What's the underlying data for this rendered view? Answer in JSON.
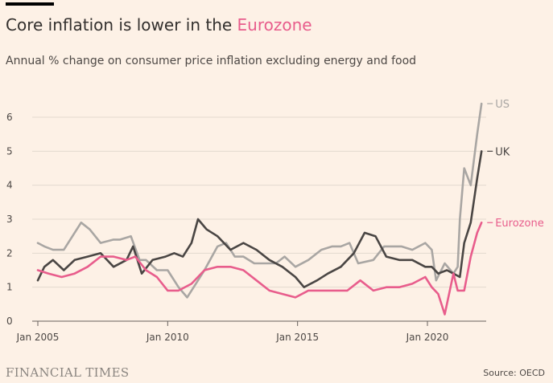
{
  "header": {
    "title_prefix": "Core inflation is lower in the ",
    "title_highlight": "Eurozone",
    "subtitle": "Annual % change on consumer price inflation excluding energy and food"
  },
  "footer": {
    "brand": "FINANCIAL TIMES",
    "source": "Source: OECD"
  },
  "colors": {
    "background": "#fdf1e6",
    "US": "#a9a6a3",
    "UK": "#4a4644",
    "Eurozone": "#e85d8c",
    "grid": "#e3d9cf",
    "axis": "#66605c"
  },
  "chart_data": {
    "type": "line",
    "title": "Core inflation is lower in the Eurozone",
    "subtitle": "Annual % change on consumer price inflation excluding energy and food",
    "xlabel": "",
    "ylabel": "",
    "xlim": [
      "2005-01",
      "2021-12"
    ],
    "ylim": [
      0,
      6.5
    ],
    "yticks": [
      0,
      1,
      2,
      3,
      4,
      5,
      6
    ],
    "xticks": [
      "Jan 2005",
      "Jan 2010",
      "Jan 2015",
      "Jan 2020"
    ],
    "grid": true,
    "legend": "direct labels at line ends",
    "series": [
      {
        "name": "US",
        "points": [
          [
            "2005-01",
            2.3
          ],
          [
            "2005-04",
            2.2
          ],
          [
            "2005-08",
            2.1
          ],
          [
            "2006-01",
            2.1
          ],
          [
            "2006-06",
            2.6
          ],
          [
            "2006-09",
            2.9
          ],
          [
            "2007-01",
            2.7
          ],
          [
            "2007-06",
            2.3
          ],
          [
            "2007-12",
            2.4
          ],
          [
            "2008-03",
            2.4
          ],
          [
            "2008-08",
            2.5
          ],
          [
            "2008-12",
            1.8
          ],
          [
            "2009-03",
            1.8
          ],
          [
            "2009-08",
            1.5
          ],
          [
            "2010-01",
            1.5
          ],
          [
            "2010-06",
            1.0
          ],
          [
            "2010-10",
            0.7
          ],
          [
            "2011-01",
            1.0
          ],
          [
            "2011-06",
            1.5
          ],
          [
            "2011-12",
            2.2
          ],
          [
            "2012-04",
            2.3
          ],
          [
            "2012-08",
            1.9
          ],
          [
            "2012-12",
            1.9
          ],
          [
            "2013-05",
            1.7
          ],
          [
            "2013-10",
            1.7
          ],
          [
            "2014-03",
            1.7
          ],
          [
            "2014-07",
            1.9
          ],
          [
            "2014-12",
            1.6
          ],
          [
            "2015-06",
            1.8
          ],
          [
            "2015-12",
            2.1
          ],
          [
            "2016-05",
            2.2
          ],
          [
            "2016-09",
            2.2
          ],
          [
            "2017-01",
            2.3
          ],
          [
            "2017-05",
            1.7
          ],
          [
            "2017-12",
            1.8
          ],
          [
            "2018-05",
            2.2
          ],
          [
            "2018-09",
            2.2
          ],
          [
            "2019-01",
            2.2
          ],
          [
            "2019-06",
            2.1
          ],
          [
            "2019-12",
            2.3
          ],
          [
            "2020-03",
            2.1
          ],
          [
            "2020-05",
            1.2
          ],
          [
            "2020-09",
            1.7
          ],
          [
            "2021-01",
            1.4
          ],
          [
            "2021-03",
            1.6
          ],
          [
            "2021-04",
            3.0
          ],
          [
            "2021-06",
            4.5
          ],
          [
            "2021-09",
            4.0
          ],
          [
            "2021-12",
            5.5
          ],
          [
            "2022-02",
            6.4
          ]
        ]
      },
      {
        "name": "UK",
        "points": [
          [
            "2005-01",
            1.2
          ],
          [
            "2005-04",
            1.6
          ],
          [
            "2005-08",
            1.8
          ],
          [
            "2006-01",
            1.5
          ],
          [
            "2006-06",
            1.8
          ],
          [
            "2006-12",
            1.9
          ],
          [
            "2007-06",
            2.0
          ],
          [
            "2007-12",
            1.6
          ],
          [
            "2008-06",
            1.8
          ],
          [
            "2008-09",
            2.2
          ],
          [
            "2009-01",
            1.4
          ],
          [
            "2009-06",
            1.8
          ],
          [
            "2009-12",
            1.9
          ],
          [
            "2010-04",
            2.0
          ],
          [
            "2010-08",
            1.9
          ],
          [
            "2010-12",
            2.3
          ],
          [
            "2011-03",
            3.0
          ],
          [
            "2011-07",
            2.7
          ],
          [
            "2011-12",
            2.5
          ],
          [
            "2012-06",
            2.1
          ],
          [
            "2012-12",
            2.3
          ],
          [
            "2013-06",
            2.1
          ],
          [
            "2013-12",
            1.8
          ],
          [
            "2014-06",
            1.6
          ],
          [
            "2014-12",
            1.3
          ],
          [
            "2015-04",
            1.0
          ],
          [
            "2015-10",
            1.2
          ],
          [
            "2016-03",
            1.4
          ],
          [
            "2016-09",
            1.6
          ],
          [
            "2017-03",
            2.0
          ],
          [
            "2017-08",
            2.6
          ],
          [
            "2018-01",
            2.5
          ],
          [
            "2018-06",
            1.9
          ],
          [
            "2018-12",
            1.8
          ],
          [
            "2019-06",
            1.8
          ],
          [
            "2019-12",
            1.6
          ],
          [
            "2020-03",
            1.6
          ],
          [
            "2020-06",
            1.4
          ],
          [
            "2020-10",
            1.5
          ],
          [
            "2021-01",
            1.4
          ],
          [
            "2021-04",
            1.3
          ],
          [
            "2021-06",
            2.3
          ],
          [
            "2021-09",
            2.9
          ],
          [
            "2021-12",
            4.2
          ],
          [
            "2022-02",
            5.0
          ]
        ]
      },
      {
        "name": "Eurozone",
        "points": [
          [
            "2005-01",
            1.5
          ],
          [
            "2005-06",
            1.4
          ],
          [
            "2005-12",
            1.3
          ],
          [
            "2006-06",
            1.4
          ],
          [
            "2006-12",
            1.6
          ],
          [
            "2007-06",
            1.9
          ],
          [
            "2007-12",
            1.9
          ],
          [
            "2008-06",
            1.8
          ],
          [
            "2008-10",
            1.9
          ],
          [
            "2009-03",
            1.5
          ],
          [
            "2009-08",
            1.3
          ],
          [
            "2010-01",
            0.9
          ],
          [
            "2010-06",
            0.9
          ],
          [
            "2010-12",
            1.1
          ],
          [
            "2011-06",
            1.5
          ],
          [
            "2011-12",
            1.6
          ],
          [
            "2012-06",
            1.6
          ],
          [
            "2012-12",
            1.5
          ],
          [
            "2013-06",
            1.2
          ],
          [
            "2013-12",
            0.9
          ],
          [
            "2014-06",
            0.8
          ],
          [
            "2014-12",
            0.7
          ],
          [
            "2015-06",
            0.9
          ],
          [
            "2015-12",
            0.9
          ],
          [
            "2016-06",
            0.9
          ],
          [
            "2016-12",
            0.9
          ],
          [
            "2017-06",
            1.2
          ],
          [
            "2017-12",
            0.9
          ],
          [
            "2018-06",
            1.0
          ],
          [
            "2018-12",
            1.0
          ],
          [
            "2019-06",
            1.1
          ],
          [
            "2019-12",
            1.3
          ],
          [
            "2020-03",
            1.0
          ],
          [
            "2020-06",
            0.8
          ],
          [
            "2020-09",
            0.2
          ],
          [
            "2021-01",
            1.4
          ],
          [
            "2021-03",
            0.9
          ],
          [
            "2021-06",
            0.9
          ],
          [
            "2021-09",
            1.9
          ],
          [
            "2021-12",
            2.6
          ],
          [
            "2022-02",
            2.9
          ]
        ]
      }
    ]
  }
}
